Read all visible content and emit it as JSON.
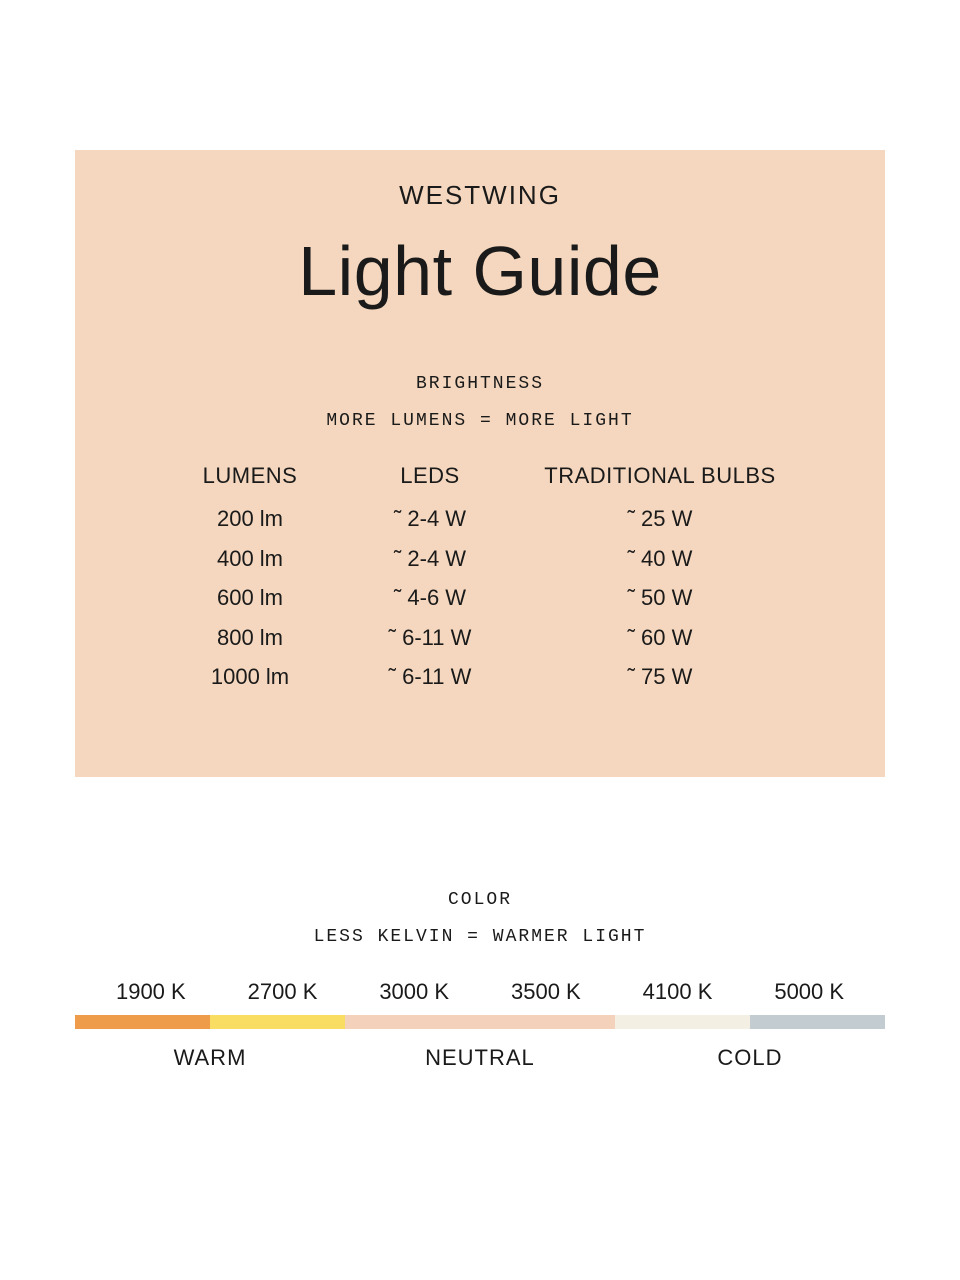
{
  "page": {
    "background_color": "#ffffff",
    "text_color": "#1a1a1a"
  },
  "card": {
    "background_color": "#f4d7be",
    "brand": "WESTWING",
    "title": "Light Guide"
  },
  "brightness": {
    "heading_line1": "BRIGHTNESS",
    "heading_line2": "MORE LUMENS = MORE LIGHT",
    "columns": {
      "lumens": "LUMENS",
      "leds": "LEDS",
      "traditional": "TRADITIONAL BULBS"
    },
    "rows": [
      {
        "lumens": "200 lm",
        "leds": "˜ 2-4 W",
        "traditional": "˜ 25 W"
      },
      {
        "lumens": "400 lm",
        "leds": "˜ 2-4 W",
        "traditional": "˜ 40 W"
      },
      {
        "lumens": "600 lm",
        "leds": "˜ 4-6 W",
        "traditional": "˜ 50 W"
      },
      {
        "lumens": "800 lm",
        "leds": "˜ 6-11 W",
        "traditional": "˜ 60 W"
      },
      {
        "lumens": "1000 lm",
        "leds": "˜ 6-11 W",
        "traditional": "˜ 75 W"
      }
    ]
  },
  "color": {
    "heading_line1": "COLOR",
    "heading_line2": "LESS KELVIN = WARMER LIGHT",
    "kelvin_values": [
      "1900 K",
      "2700 K",
      "3000 K",
      "3500 K",
      "4100 K",
      "5000 K"
    ],
    "bar_segments": [
      {
        "color": "#ef9c4a",
        "width_pct": 16.67
      },
      {
        "color": "#f8dd62",
        "width_pct": 16.67
      },
      {
        "color": "#f3d1bb",
        "width_pct": 16.67
      },
      {
        "color": "#f3d1bb",
        "width_pct": 16.67
      },
      {
        "color": "#f3efe3",
        "width_pct": 16.67
      },
      {
        "color": "#c3ccd1",
        "width_pct": 16.65
      }
    ],
    "category_labels": [
      {
        "text": "WARM",
        "width_pct": 33.33
      },
      {
        "text": "NEUTRAL",
        "width_pct": 33.33
      },
      {
        "text": "COLD",
        "width_pct": 33.34
      }
    ]
  }
}
